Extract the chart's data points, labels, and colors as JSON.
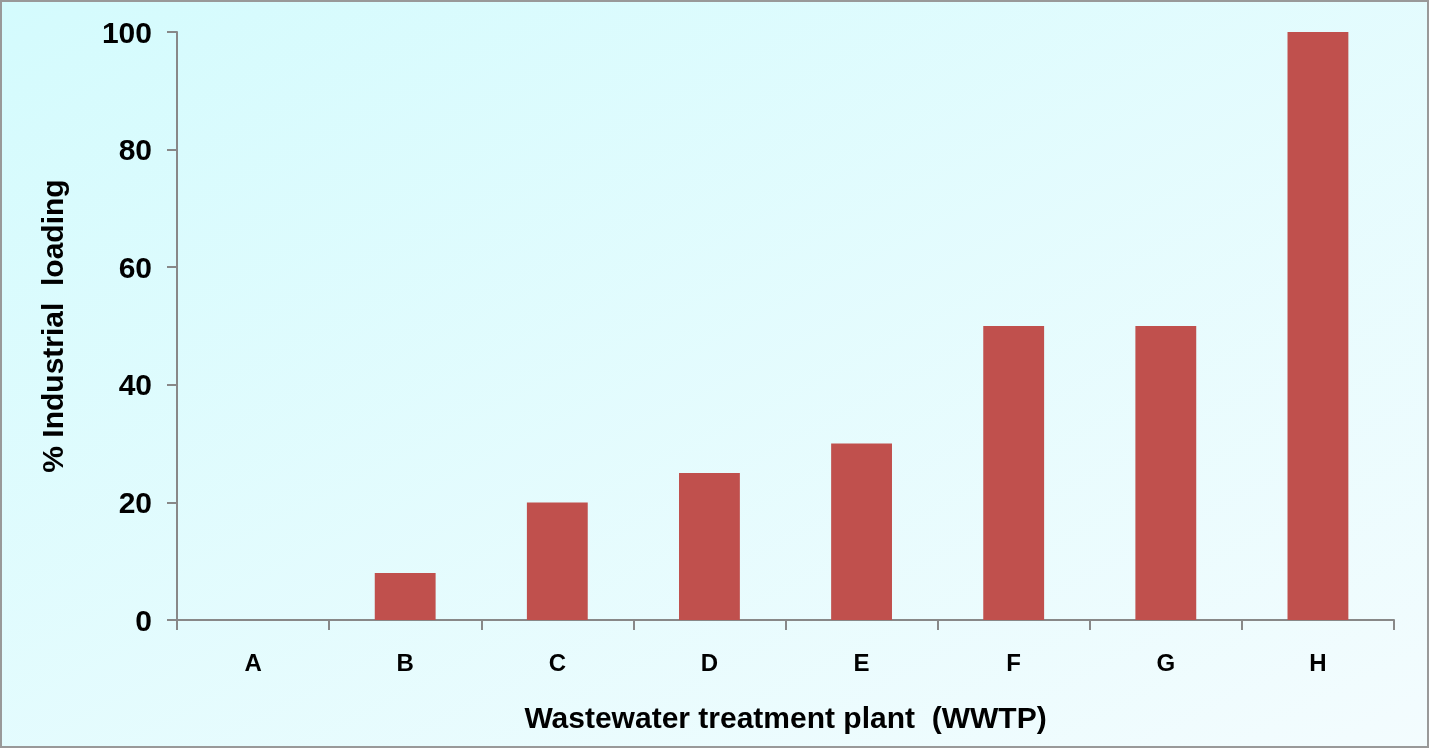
{
  "chart_data": {
    "type": "bar",
    "xlabel": "Wastewater treatment plant  (WWTP)",
    "ylabel": "% Industrial  loading",
    "categories": [
      "A",
      "B",
      "C",
      "D",
      "E",
      "F",
      "G",
      "H"
    ],
    "values": [
      0,
      8,
      20,
      25,
      30,
      50,
      50,
      100
    ],
    "color": "#c0504d",
    "ylim": [
      0,
      100
    ],
    "yticks": [
      0,
      20,
      40,
      60,
      80,
      100
    ],
    "grid": false
  }
}
